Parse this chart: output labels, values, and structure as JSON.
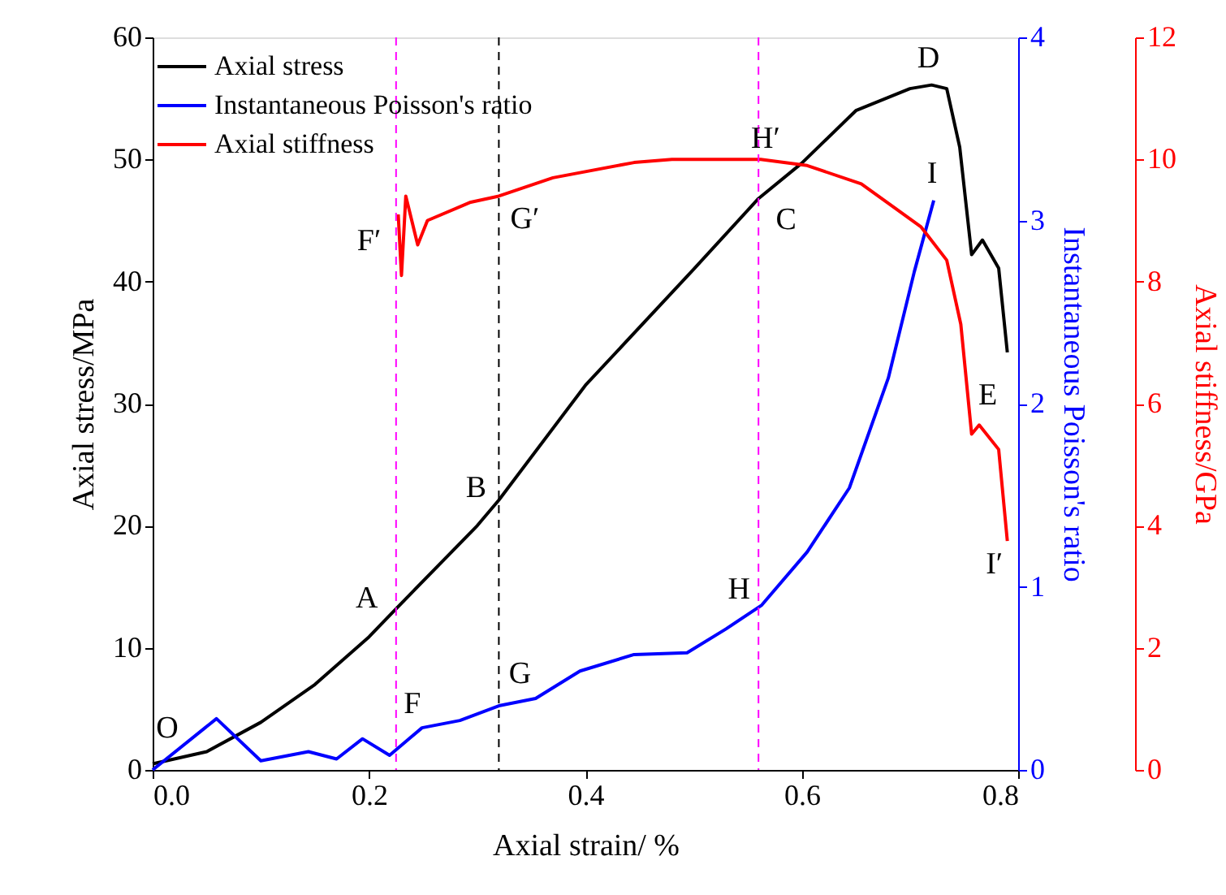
{
  "chart_data": {
    "type": "line",
    "xlabel": "Axial strain/ %",
    "ylabel": "Axial stress/MPa",
    "y2label": "Instantaneous Poisson's ratio",
    "y3label": "Axial stiffness/GPa",
    "xlim": [
      0,
      0.8
    ],
    "xticks": [
      {
        "value": 0,
        "label": "0.0"
      },
      0.2,
      0.4,
      0.6,
      0.8
    ],
    "ylim": [
      0,
      60
    ],
    "yticks": [
      0,
      10,
      20,
      30,
      40,
      50,
      60
    ],
    "y2lim": [
      0,
      4
    ],
    "y2ticks": [
      0,
      1,
      2,
      3,
      4
    ],
    "y3lim": [
      0,
      12
    ],
    "y3ticks": [
      0,
      2,
      4,
      6,
      8,
      10,
      12
    ],
    "grid": false,
    "legend": "top left",
    "marker": "none",
    "line_style": "solid",
    "series": [
      {
        "name": "Axial stress",
        "color": "#000000",
        "x": [
          0,
          0.05,
          0.1,
          0.15,
          0.2,
          0.225,
          0.3,
          0.32,
          0.4,
          0.5,
          0.56,
          0.6,
          0.65,
          0.7,
          0.72,
          0.734,
          0.746,
          0.757,
          0.767,
          0.782,
          0.79
        ],
        "values": [
          0.5,
          1.5,
          3.9,
          7,
          10.9,
          13.2,
          20,
          22.1,
          31.5,
          41,
          46.8,
          49.7,
          54,
          55.8,
          56.1,
          55.8,
          51,
          42.2,
          43.4,
          41.1,
          34.2
        ]
      },
      {
        "name": "Instantaneous Poisson's ratio",
        "color": "#0000ff",
        "axis": "y2",
        "x": [
          0,
          0.059,
          0.1,
          0.144,
          0.17,
          0.194,
          0.219,
          0.249,
          0.284,
          0.32,
          0.354,
          0.395,
          0.445,
          0.494,
          0.53,
          0.563,
          0.605,
          0.644,
          0.68,
          0.704,
          0.722
        ],
        "values": [
          0,
          0.28,
          0.05,
          0.1,
          0.06,
          0.17,
          0.08,
          0.23,
          0.27,
          0.35,
          0.39,
          0.54,
          0.63,
          0.64,
          0.77,
          0.9,
          1.19,
          1.54,
          2.14,
          2.72,
          3.11
        ]
      },
      {
        "name": "Axial stiffness",
        "color": "#ff0000",
        "axis": "y3",
        "x": [
          0.227,
          0.23,
          0.234,
          0.245,
          0.254,
          0.294,
          0.32,
          0.37,
          0.445,
          0.48,
          0.562,
          0.605,
          0.655,
          0.71,
          0.734,
          0.747,
          0.757,
          0.764,
          0.782,
          0.79
        ],
        "values": [
          9.1,
          8.1,
          9.4,
          8.6,
          9.0,
          9.3,
          9.4,
          9.7,
          9.95,
          10.0,
          10.0,
          9.9,
          9.6,
          8.9,
          8.35,
          7.3,
          5.5,
          5.65,
          5.25,
          3.75
        ]
      }
    ],
    "ref_lines": [
      {
        "axis": "x",
        "value": 0.225,
        "label": null,
        "color": "#ff00ff",
        "line_style": "dashed"
      },
      {
        "axis": "x",
        "value": 0.32,
        "label": null,
        "color": "#000000",
        "line_style": "dashed"
      },
      {
        "axis": "x",
        "value": 0.56,
        "label": null,
        "color": "#ff00ff",
        "line_style": "dashed"
      }
    ],
    "annotations": [
      {
        "text": "O",
        "x": 0,
        "y": 0.5
      },
      {
        "text": "A",
        "x": 0.225,
        "y": 13.2
      },
      {
        "text": "B",
        "x": 0.32,
        "y": 22.1
      },
      {
        "text": "C",
        "x": 0.56,
        "y": 46.8
      },
      {
        "text": "D",
        "x": 0.72,
        "y": 56.1
      },
      {
        "text": "E",
        "x": 0.79,
        "y": 34.2
      },
      {
        "text": "F",
        "x": 0.219,
        "y": 1.2
      },
      {
        "text": "G",
        "x": 0.32,
        "y": 5.25
      },
      {
        "text": "H",
        "x": 0.563,
        "y": 13.5
      },
      {
        "text": "I",
        "x": 0.722,
        "y": 46.65
      },
      {
        "text": "F′",
        "x": 0.227,
        "y": 45.5
      },
      {
        "text": "G′",
        "x": 0.32,
        "y": 47
      },
      {
        "text": "H′",
        "x": 0.562,
        "y": 50
      },
      {
        "text": "I′",
        "x": 0.79,
        "y": 18.75
      }
    ]
  }
}
